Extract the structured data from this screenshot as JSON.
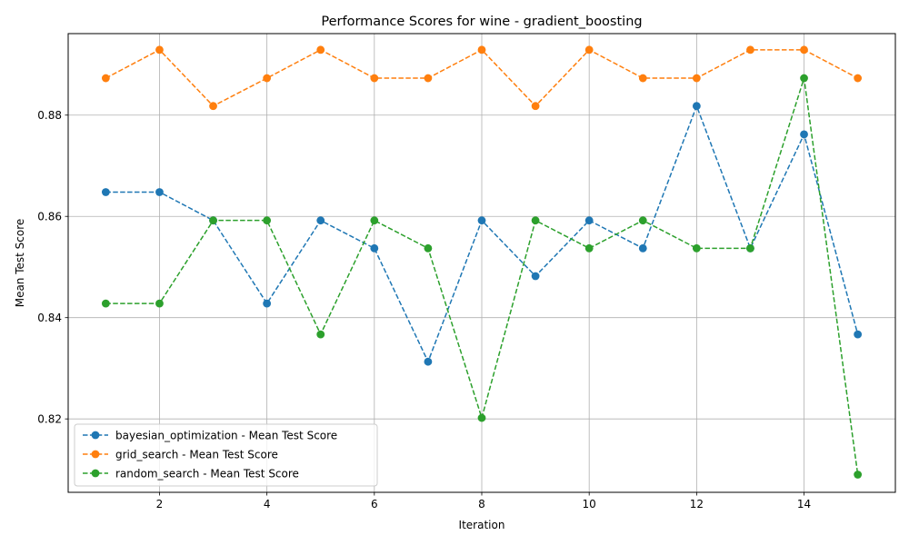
{
  "chart_data": {
    "type": "line",
    "title": "Performance Scores for wine - gradient_boosting",
    "xlabel": "Iteration",
    "ylabel": "Mean Test Score",
    "xlim": [
      0.3,
      15.7
    ],
    "ylim": [
      0.8055,
      0.8961
    ],
    "xticks": [
      2,
      4,
      6,
      8,
      10,
      12,
      14
    ],
    "yticks": [
      0.82,
      0.84,
      0.86,
      0.88
    ],
    "xtick_labels": [
      "2",
      "4",
      "6",
      "8",
      "10",
      "12",
      "14"
    ],
    "ytick_labels": [
      "0.82",
      "0.84",
      "0.86",
      "0.88"
    ],
    "grid": true,
    "legend_position": "lower-left",
    "x": [
      1,
      2,
      3,
      4,
      5,
      6,
      7,
      8,
      9,
      10,
      11,
      12,
      13,
      14,
      15
    ],
    "series": [
      {
        "name": "bayesian_optimization - Mean Test Score",
        "color": "#1f77b4",
        "values": [
          0.8648,
          0.8648,
          0.8592,
          0.8428,
          0.8592,
          0.8537,
          0.8313,
          0.8592,
          0.8482,
          0.8592,
          0.8537,
          0.8818,
          0.8537,
          0.8762,
          0.8367
        ]
      },
      {
        "name": "grid_search - Mean Test Score",
        "color": "#ff7f0e",
        "values": [
          0.8873,
          0.8929,
          0.8818,
          0.8873,
          0.8929,
          0.8873,
          0.8873,
          0.8929,
          0.8818,
          0.8929,
          0.8873,
          0.8873,
          0.8929,
          0.8929,
          0.8873
        ]
      },
      {
        "name": "random_search - Mean Test Score",
        "color": "#2ca02c",
        "values": [
          0.8428,
          0.8428,
          0.8592,
          0.8592,
          0.8367,
          0.8592,
          0.8537,
          0.8202,
          0.8592,
          0.8537,
          0.8592,
          0.8537,
          0.8537,
          0.8873,
          0.809
        ]
      }
    ]
  }
}
